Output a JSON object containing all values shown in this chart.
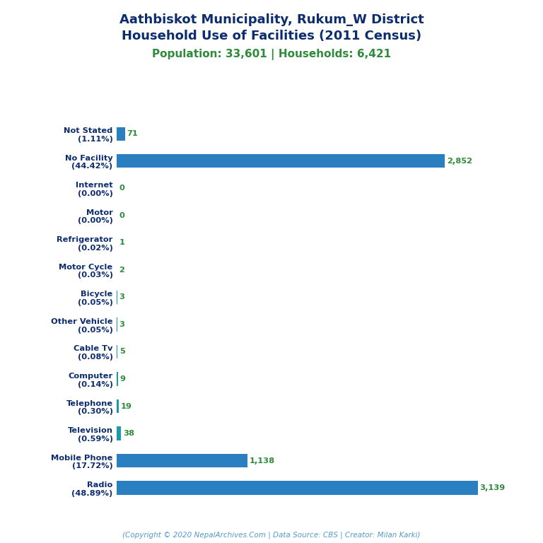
{
  "title_line1": "Aathbiskot Municipality, Rukum_W District",
  "title_line2": "Household Use of Facilities (2011 Census)",
  "subtitle": "Population: 33,601 | Households: 6,421",
  "copyright": "(Copyright © 2020 NepalArchives.Com | Data Source: CBS | Creator: Milan Karki)",
  "categories": [
    "Not Stated\n(1.11%)",
    "No Facility\n(44.42%)",
    "Internet\n(0.00%)",
    "Motor\n(0.00%)",
    "Refrigerator\n(0.02%)",
    "Motor Cycle\n(0.03%)",
    "Bicycle\n(0.05%)",
    "Other Vehicle\n(0.05%)",
    "Cable Tv\n(0.08%)",
    "Computer\n(0.14%)",
    "Telephone\n(0.30%)",
    "Television\n(0.59%)",
    "Mobile Phone\n(17.72%)",
    "Radio\n(48.89%)"
  ],
  "values": [
    71,
    2852,
    0,
    0,
    1,
    2,
    3,
    3,
    5,
    9,
    19,
    38,
    1138,
    3139
  ],
  "value_labels": [
    "71",
    "2,852",
    "0",
    "0",
    "1",
    "2",
    "3",
    "3",
    "5",
    "9",
    "19",
    "38",
    "1,138",
    "3,139"
  ],
  "bar_color_large": "#2a7fc0",
  "bar_color_small": "#1a9aaa",
  "title_color": "#0d2c6e",
  "subtitle_color": "#2e8b3a",
  "value_color": "#2e8b3a",
  "label_color": "#0d2c6e",
  "copyright_color": "#5599cc",
  "bg_color": "#ffffff",
  "xlim": [
    0,
    3400
  ],
  "bar_height": 0.5
}
